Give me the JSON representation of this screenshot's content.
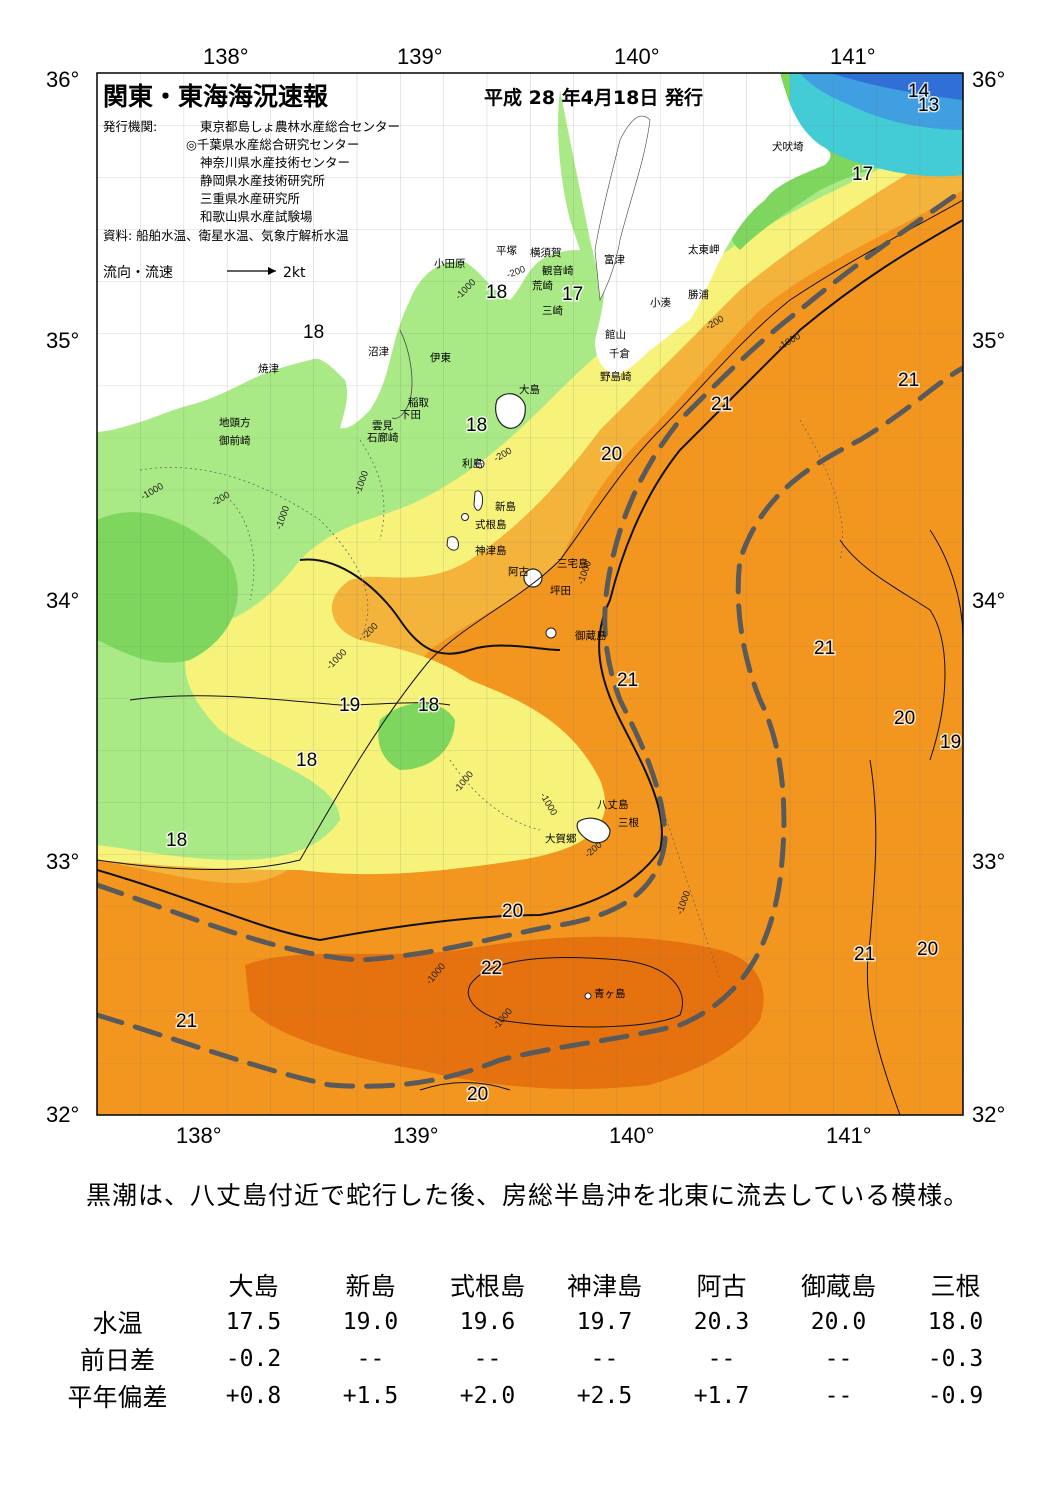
{
  "map": {
    "title": "関東・東海海況速報",
    "issue_date": "平成 28 年4月18日 発行",
    "issuer_label": "発行機関:",
    "issuers": [
      "東京都島しょ農林水産総合センター",
      "◎千葉県水産総合研究センター",
      "神奈川県水産技術センター",
      "静岡県水産技術研究所",
      "三重県水産研究所",
      "和歌山県水産試験場"
    ],
    "source": "資料: 船舶水温、衛星水温、気象庁解析水温",
    "legend": {
      "label": "流向・流速",
      "scale": "2kt"
    },
    "lon_labels": [
      "138°",
      "139°",
      "140°",
      "141°"
    ],
    "lat_labels": [
      "36°",
      "35°",
      "34°",
      "33°",
      "32°"
    ],
    "isotherm_labels": [
      "14",
      "13",
      "17",
      "18",
      "17",
      "18",
      "21",
      "21",
      "18",
      "20",
      "21",
      "19",
      "18",
      "18",
      "20",
      "18",
      "21",
      "20",
      "22",
      "21",
      "20",
      "20",
      "21",
      "19"
    ],
    "depth_labels": [
      "-1000",
      "-200",
      "-1000",
      "-200",
      "-1000",
      "-1000",
      "-200",
      "-200",
      "-1000",
      "-1000",
      "-1000",
      "-200",
      "-1000",
      "-1000",
      "-1000",
      "-200",
      "-1000",
      "-1000"
    ],
    "place_names": [
      "犬吠埼",
      "太東岬",
      "勝浦",
      "小湊",
      "富津",
      "横須賀",
      "平塚",
      "観音崎",
      "荒崎",
      "三崎",
      "小田原",
      "館山",
      "千倉",
      "野島崎",
      "沼津",
      "伊東",
      "大島",
      "焼津",
      "稲取",
      "下田",
      "雲見",
      "石廊崎",
      "地頭方",
      "御前崎",
      "利島",
      "新島",
      "式根島",
      "神津島",
      "三宅島",
      "阿古",
      "坪田",
      "御蔵島",
      "八丈島",
      "三根",
      "大賀郷",
      "青ヶ島"
    ]
  },
  "summary": "黒潮は、八丈島付近で蛇行した後、房総半島沖を北東に流去している模様。",
  "table": {
    "columns": [
      "大島",
      "新島",
      "式根島",
      "神津島",
      "阿古",
      "御蔵島",
      "三根"
    ],
    "rows": [
      {
        "label": "水温",
        "values": [
          "17.5",
          "19.0",
          "19.6",
          "19.7",
          "20.3",
          "20.0",
          "18.0"
        ]
      },
      {
        "label": "前日差",
        "values": [
          "-0.2",
          "--",
          "--",
          "--",
          "--",
          "--",
          "-0.3"
        ]
      },
      {
        "label": "平年偏差",
        "values": [
          "+0.8",
          "+1.5",
          "+2.0",
          "+2.5",
          "+1.7",
          "--",
          "-0.9"
        ]
      }
    ]
  },
  "colors": {
    "land": "#ffffff",
    "t13": "#2f6fd6",
    "t14": "#3f9fe0",
    "t16": "#44ccd6",
    "t17": "#7fd65f",
    "t18": "#a9ea86",
    "t19": "#f7f27a",
    "t19_5": "#f6d65a",
    "t20": "#f4b43c",
    "t21": "#f3961f",
    "t22": "#e6720f",
    "kuroshio_axis": "#5a5a5a"
  }
}
